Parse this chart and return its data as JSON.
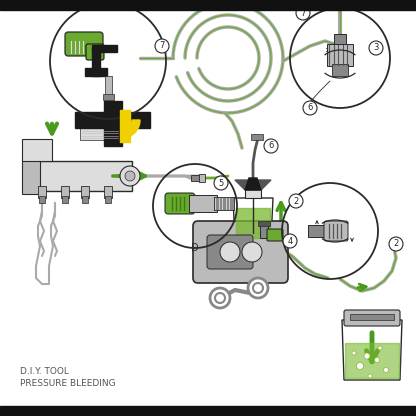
{
  "label_text": "D.I.Y. TOOL\nPRESSURE BLEEDING",
  "label_fontsize": 6.5,
  "bg_color": "#ffffff",
  "line_color": "#2a2a2a",
  "green_color": "#6aaa30",
  "yellow_color": "#f0d000",
  "black_color": "#1a1a1a",
  "gray_dark": "#555555",
  "gray_mid": "#888888",
  "gray_light": "#bbbbbb",
  "gray_lighter": "#dddddd",
  "fluid_color": "#7ab830",
  "hose_gray": "#aaaaaa",
  "arrow_green": "#4a9a20",
  "border_black": "#111111"
}
